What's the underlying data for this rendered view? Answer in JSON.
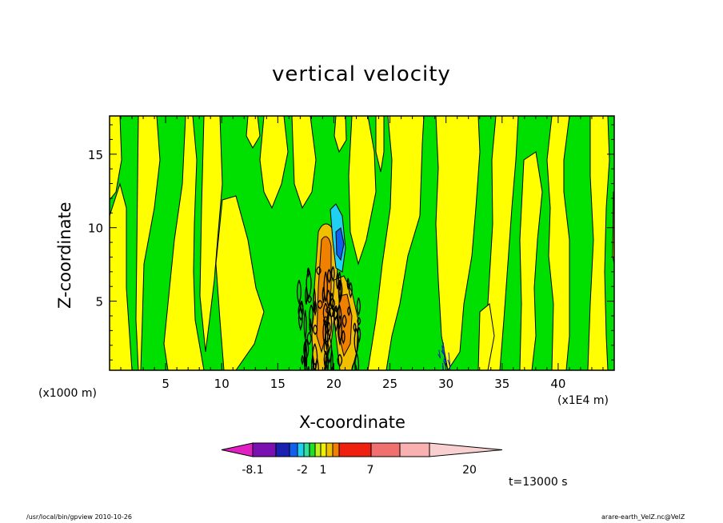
{
  "chart_data": {
    "type": "heatmap",
    "title": "vertical velocity",
    "xlabel": "X-coordinate",
    "ylabel": "Z-coordinate",
    "x_unit": "(x1E4 m)",
    "y_unit": "(x1000 m)",
    "xlim": [
      0,
      45
    ],
    "ylim": [
      0.3,
      17.6
    ],
    "x_ticks": [
      5,
      10,
      15,
      20,
      25,
      30,
      35,
      40
    ],
    "y_ticks": [
      5,
      10,
      15
    ],
    "annotation": "t=13000 s",
    "colorbar": {
      "levels": [
        "-8.1",
        "-2",
        "1",
        "7",
        "20"
      ],
      "colors": [
        "#e020c0",
        "#7a10b0",
        "#1a20b0",
        "#1060f0",
        "#20d0f0",
        "#30e0a0",
        "#20e020",
        "#c0f020",
        "#f0f000",
        "#f0c000",
        "#f08000",
        "#f02010",
        "#f07070",
        "#f8b0b0",
        "#f8d0d0"
      ]
    },
    "field_colors": {
      "negative": "#00e000",
      "positive": "#ffff00"
    }
  },
  "footer": {
    "left": "/usr/local/bin/gpview   2010-10-26",
    "right": "arare-earth_VelZ.nc@VelZ"
  }
}
